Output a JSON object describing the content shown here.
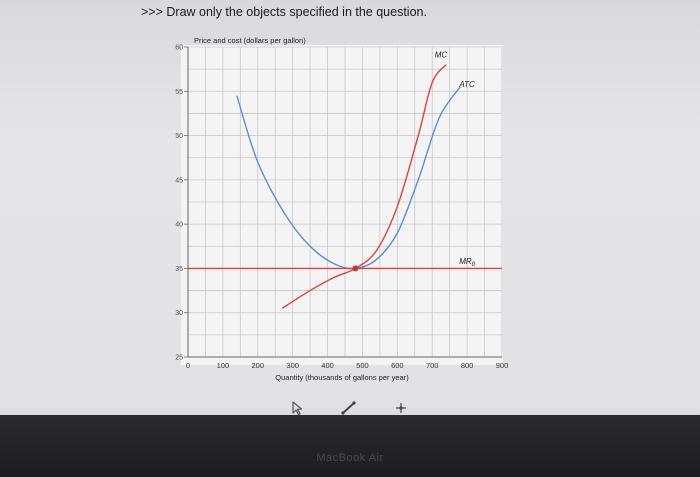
{
  "question": {
    "prompt_marker": ">>>",
    "instruction": "Draw only the objects specified in the question."
  },
  "chart_data": {
    "type": "line",
    "ylabel": "Price and cost (dollars per gallon)",
    "xlabel": "Quantity (thousands of gallons per year)",
    "xlim": [
      0,
      900
    ],
    "ylim": [
      25,
      60
    ],
    "x_ticks": [
      0,
      100,
      200,
      300,
      400,
      500,
      600,
      700,
      800,
      900
    ],
    "x_tick_labels": [
      "0",
      "100",
      "200",
      "300",
      "400",
      "500",
      "600",
      "700",
      "800",
      "900"
    ],
    "y_ticks": [
      25,
      30,
      35,
      40,
      45,
      50,
      55,
      60
    ],
    "y_tick_labels": [
      "25",
      "30",
      "35",
      "40",
      "45",
      "50",
      "55",
      "60"
    ],
    "grid": true,
    "series": [
      {
        "name": "MC",
        "color": "#e0413a",
        "points": [
          [
            270,
            30.5
          ],
          [
            350,
            32.5
          ],
          [
            420,
            34
          ],
          [
            480,
            35
          ],
          [
            540,
            37
          ],
          [
            600,
            42
          ],
          [
            660,
            50
          ],
          [
            700,
            56
          ],
          [
            740,
            58
          ]
        ]
      },
      {
        "name": "ATC",
        "color": "#5a8fcf",
        "points": [
          [
            140,
            54.5
          ],
          [
            200,
            47
          ],
          [
            280,
            41
          ],
          [
            350,
            37.5
          ],
          [
            420,
            35.5
          ],
          [
            480,
            35
          ],
          [
            540,
            36
          ],
          [
            600,
            39
          ],
          [
            660,
            45
          ],
          [
            720,
            52
          ],
          [
            780,
            55.5
          ]
        ]
      },
      {
        "name": "MR0",
        "color": "#e0413a",
        "points": [
          [
            0,
            35
          ],
          [
            900,
            35
          ]
        ]
      }
    ],
    "labels": [
      {
        "text": "MC",
        "series": "MC",
        "x": 725,
        "y": 58.8
      },
      {
        "text": "ATC",
        "series": "ATC",
        "x": 800,
        "y": 55.5
      },
      {
        "text": "MR",
        "subscript": "0",
        "series": "MR0",
        "x": 800,
        "y": 35.5
      }
    ],
    "marker": {
      "x": 480,
      "y": 35,
      "color": "#c0392b"
    }
  },
  "toolbar": {
    "tools": [
      {
        "name": "select-tool",
        "icon": "cursor-arrow-icon"
      },
      {
        "name": "line-tool",
        "icon": "line-draw-icon"
      },
      {
        "name": "point-tool",
        "icon": "point-plus-icon"
      }
    ]
  },
  "device": {
    "brand": "MacBook Air"
  }
}
